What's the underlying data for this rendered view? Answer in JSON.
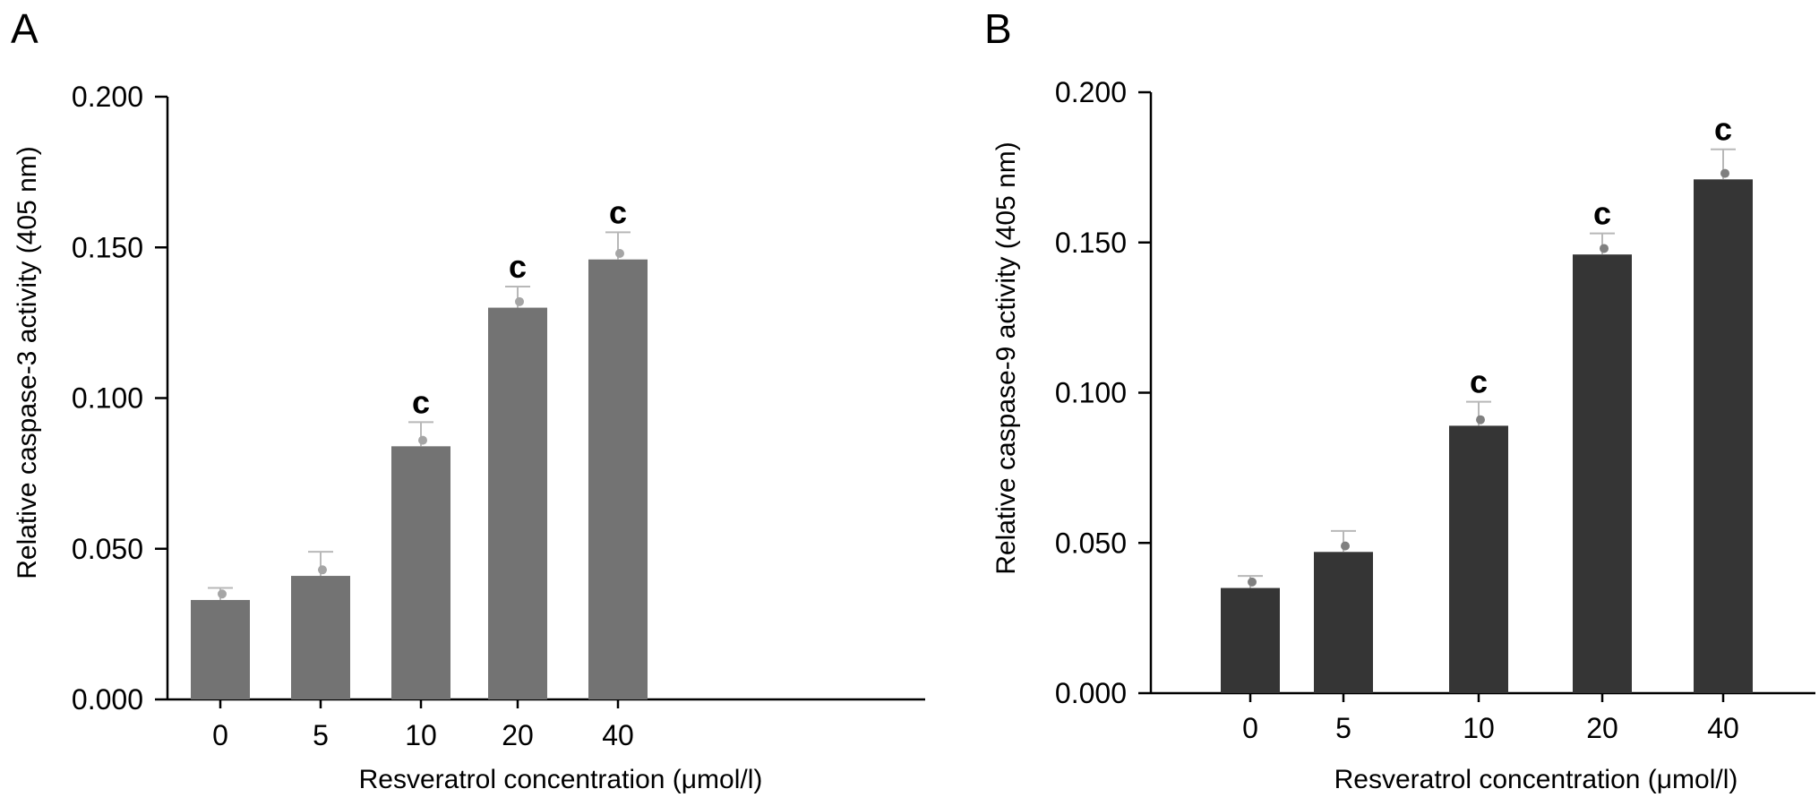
{
  "chart_data": [
    {
      "panel": "A",
      "type": "bar",
      "xlabel": "Resveratrol concentration (μmol/l)",
      "ylabel": "Relative caspase-3 activity (405 nm)",
      "categories": [
        "0",
        "5",
        "10",
        "20",
        "40"
      ],
      "values": [
        0.033,
        0.041,
        0.084,
        0.13,
        0.146
      ],
      "errors": [
        0.004,
        0.008,
        0.008,
        0.007,
        0.009
      ],
      "points": [
        0.035,
        0.043,
        0.086,
        0.132,
        0.148
      ],
      "significance": [
        "",
        "",
        "c",
        "c",
        "c"
      ],
      "ylim": [
        0,
        0.2
      ],
      "yticks": [
        "0.000",
        "0.050",
        "0.100",
        "0.150",
        "0.200"
      ],
      "bar_color": "#737373",
      "point_color": "#a5a5a5",
      "grid": false
    },
    {
      "panel": "B",
      "type": "bar",
      "xlabel": "Resveratrol concentration (μmol/l)",
      "ylabel": "Relative caspase-9 activity (405 nm)",
      "categories": [
        "0",
        "5",
        "10",
        "20",
        "40"
      ],
      "values": [
        0.035,
        0.047,
        0.089,
        0.146,
        0.171
      ],
      "errors": [
        0.004,
        0.007,
        0.008,
        0.007,
        0.01
      ],
      "points": [
        0.037,
        0.049,
        0.091,
        0.148,
        0.173
      ],
      "significance": [
        "",
        "",
        "c",
        "c",
        "c"
      ],
      "ylim": [
        0,
        0.2
      ],
      "yticks": [
        "0.000",
        "0.050",
        "0.100",
        "0.150",
        "0.200"
      ],
      "bar_color": "#353535",
      "point_color": "#808080",
      "grid": false
    }
  ]
}
